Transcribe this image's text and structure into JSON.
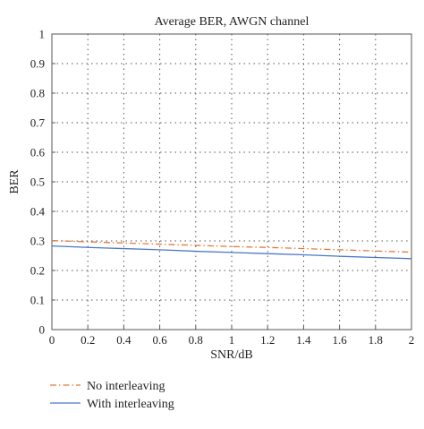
{
  "chart_data": {
    "type": "line",
    "title": "Average BER, AWGN channel",
    "xlabel": "SNR/dB",
    "ylabel": "BER",
    "xlim": [
      0,
      2
    ],
    "ylim": [
      0,
      1
    ],
    "grid": true,
    "legend_position": "bottom-left",
    "x_ticks": [
      "0",
      "0.2",
      "0.4",
      "0.6",
      "0.8",
      "1",
      "1.2",
      "1.4",
      "1.6",
      "1.8",
      "2"
    ],
    "y_ticks": [
      "0",
      "0.1",
      "0.2",
      "0.3",
      "0.4",
      "0.5",
      "0.6",
      "0.7",
      "0.8",
      "0.9",
      "1"
    ],
    "series": [
      {
        "name": "No interleaving",
        "color": "#e07b39",
        "line_style": "dash-dot",
        "x": [
          0,
          0.2,
          0.4,
          0.6,
          0.8,
          1.0,
          1.2,
          1.4,
          1.6,
          1.8,
          2.0
        ],
        "values": [
          0.301,
          0.297,
          0.293,
          0.289,
          0.285,
          0.281,
          0.278,
          0.274,
          0.27,
          0.266,
          0.262
        ]
      },
      {
        "name": "With interleaving",
        "color": "#4a78c8",
        "line_style": "solid",
        "x": [
          0,
          0.2,
          0.4,
          0.6,
          0.8,
          1.0,
          1.2,
          1.4,
          1.6,
          1.8,
          2.0
        ],
        "values": [
          0.283,
          0.278,
          0.274,
          0.27,
          0.265,
          0.261,
          0.257,
          0.253,
          0.248,
          0.244,
          0.24
        ]
      }
    ]
  }
}
